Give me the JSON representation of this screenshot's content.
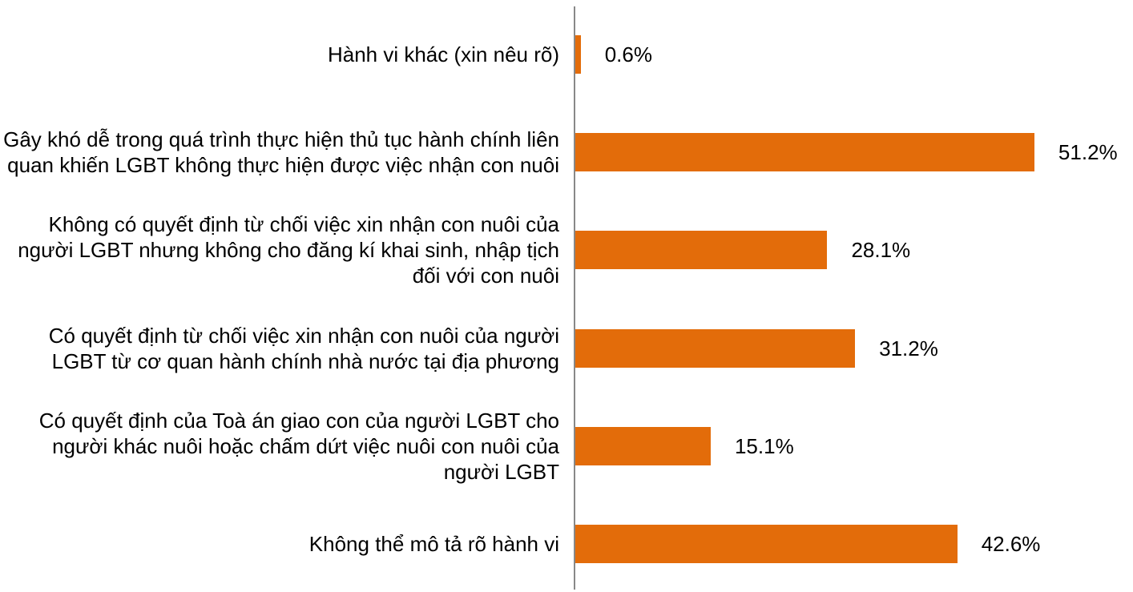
{
  "chart_data": {
    "type": "bar",
    "orientation": "horizontal",
    "categories": [
      "Hành vi khác (xin nêu rõ)",
      "Gây khó dễ trong quá trình thực hiện thủ tục hành chính liên quan khiến LGBT không thực hiện được việc nhận con nuôi",
      "Không có quyết định từ chối việc xin nhận con nuôi của người LGBT nhưng không cho đăng kí khai sinh, nhập tịch đối với con nuôi",
      "Có quyết định từ chối việc xin nhận con nuôi của người LGBT từ cơ quan hành chính nhà nước tại địa phương",
      "Có quyết định của Toà án giao con của người LGBT cho người khác nuôi hoặc chấm dứt việc nuôi con nuôi của người LGBT",
      "Không thể mô tả rõ hành vi"
    ],
    "values": [
      0.6,
      51.2,
      28.1,
      31.2,
      15.1,
      42.6
    ],
    "value_labels": [
      "0.6%",
      "51.2%",
      "28.1%",
      "31.2%",
      "15.1%",
      "42.6%"
    ],
    "color": "#e36c0a"
  }
}
